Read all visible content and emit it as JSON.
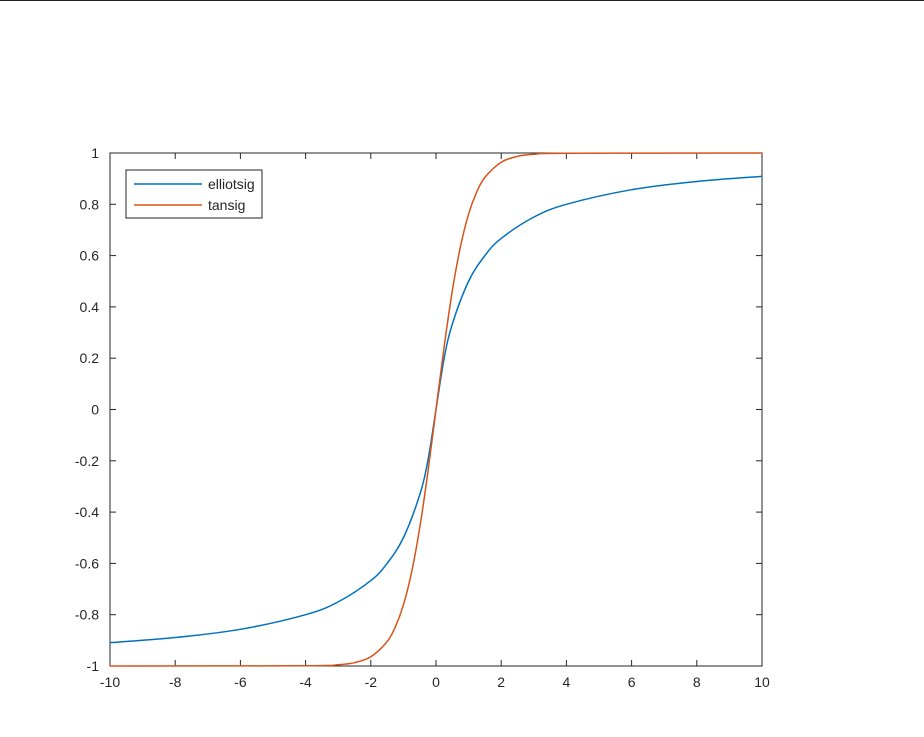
{
  "chart_data": {
    "type": "line",
    "title": "",
    "xlabel": "",
    "ylabel": "",
    "xlim": [
      -10,
      10
    ],
    "ylim": [
      -1,
      1
    ],
    "xticks": [
      -10,
      -8,
      -6,
      -4,
      -2,
      0,
      2,
      4,
      6,
      8,
      10
    ],
    "yticks": [
      -1,
      -0.8,
      -0.6,
      -0.4,
      -0.2,
      0,
      0.2,
      0.4,
      0.6,
      0.8,
      1
    ],
    "x_tick_labels": [
      "-10",
      "-8",
      "-6",
      "-4",
      "-2",
      "0",
      "2",
      "4",
      "6",
      "8",
      "10"
    ],
    "y_tick_labels": [
      "-1",
      "-0.8",
      "-0.6",
      "-0.4",
      "-0.2",
      "0",
      "0.2",
      "0.4",
      "0.6",
      "0.8",
      "1"
    ],
    "grid": false,
    "legend_position": "top-left",
    "series": [
      {
        "name": "elliotsig",
        "color": "#0072BD",
        "x": [
          -10,
          -8,
          -6,
          -4,
          -3,
          -2,
          -1.5,
          -1,
          -0.5,
          -0.25,
          0,
          0.25,
          0.5,
          1,
          1.5,
          2,
          3,
          4,
          6,
          8,
          10
        ],
        "y": [
          -0.909,
          -0.889,
          -0.857,
          -0.8,
          -0.75,
          -0.667,
          -0.6,
          -0.5,
          -0.333,
          -0.2,
          0,
          0.2,
          0.333,
          0.5,
          0.6,
          0.667,
          0.75,
          0.8,
          0.857,
          0.889,
          0.909
        ]
      },
      {
        "name": "tansig",
        "color": "#D95319",
        "x": [
          -10,
          -4,
          -3,
          -2.5,
          -2,
          -1.5,
          -1.25,
          -1,
          -0.75,
          -0.5,
          -0.25,
          0,
          0.25,
          0.5,
          0.75,
          1,
          1.25,
          1.5,
          2,
          2.5,
          3,
          4,
          10
        ],
        "y": [
          -1,
          -0.999,
          -0.995,
          -0.987,
          -0.964,
          -0.905,
          -0.848,
          -0.762,
          -0.635,
          -0.462,
          -0.245,
          0,
          0.245,
          0.462,
          0.635,
          0.762,
          0.848,
          0.905,
          0.964,
          0.987,
          0.995,
          0.999,
          1
        ]
      }
    ]
  }
}
